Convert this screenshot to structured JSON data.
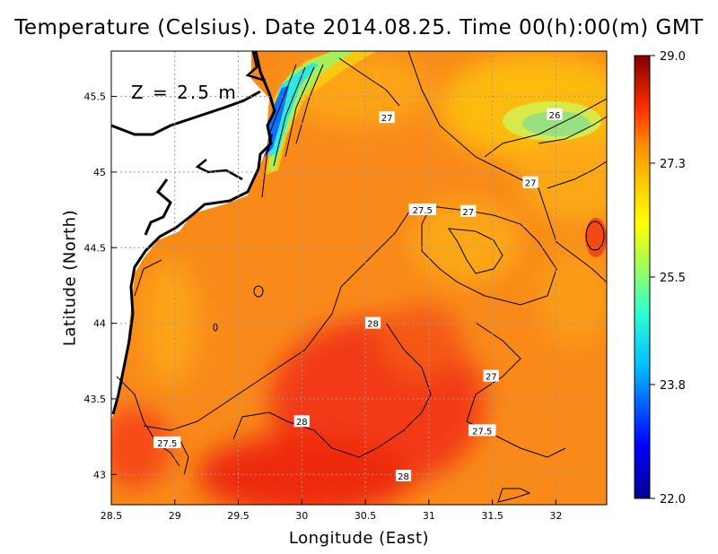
{
  "title": "Temperature (Celsius). Date 2014.08.25. Time 00(h):00(m)  GMT",
  "depth_label": "Z = 2.5 m",
  "xlabel": "Longitude (East)",
  "ylabel": "Latitude (North)",
  "colors": {
    "land": "#ffffff",
    "coastline": "#000000",
    "grid": "#9a9a9a",
    "contour": "#000000"
  },
  "chart_data": {
    "type": "heatmap",
    "map": "sea surface temperature",
    "xlim": [
      28.5,
      32.4
    ],
    "ylim": [
      42.8,
      45.8
    ],
    "x_ticks": [
      28.5,
      29,
      29.5,
      30,
      30.5,
      31,
      31.5,
      32
    ],
    "x_tick_labels": [
      "28.5",
      "29",
      "29.5",
      "30",
      "30.5",
      "31",
      "31.5",
      "32"
    ],
    "y_ticks": [
      43,
      43.5,
      44,
      44.5,
      45,
      45.5
    ],
    "y_tick_labels": [
      "43",
      "43.5",
      "44",
      "44.5",
      "45",
      "45.5"
    ],
    "grid": true,
    "colorbar": {
      "min": 22.0,
      "max": 29.0,
      "tick_labels": [
        "29.0",
        "27.3",
        "25.5",
        "23.8",
        "22.0"
      ],
      "tick_values": [
        29.0,
        27.3,
        25.5,
        23.8,
        22.0
      ],
      "colormap": "jet",
      "placement": "right"
    },
    "contour_labels": [
      {
        "text": "27",
        "lon": 30.67,
        "lat": 45.36
      },
      {
        "text": "26",
        "lon": 31.99,
        "lat": 45.38
      },
      {
        "text": "27",
        "lon": 31.8,
        "lat": 44.93
      },
      {
        "text": "27.5",
        "lon": 30.95,
        "lat": 44.75
      },
      {
        "text": "27",
        "lon": 31.31,
        "lat": 44.74
      },
      {
        "text": "28",
        "lon": 30.56,
        "lat": 44.0
      },
      {
        "text": "27",
        "lon": 31.49,
        "lat": 43.65
      },
      {
        "text": "28",
        "lon": 30.0,
        "lat": 43.35
      },
      {
        "text": "27.5",
        "lon": 31.42,
        "lat": 43.29
      },
      {
        "text": "27.5",
        "lon": 28.94,
        "lat": 43.21
      },
      {
        "text": "28",
        "lon": 30.8,
        "lat": 42.99
      }
    ]
  }
}
